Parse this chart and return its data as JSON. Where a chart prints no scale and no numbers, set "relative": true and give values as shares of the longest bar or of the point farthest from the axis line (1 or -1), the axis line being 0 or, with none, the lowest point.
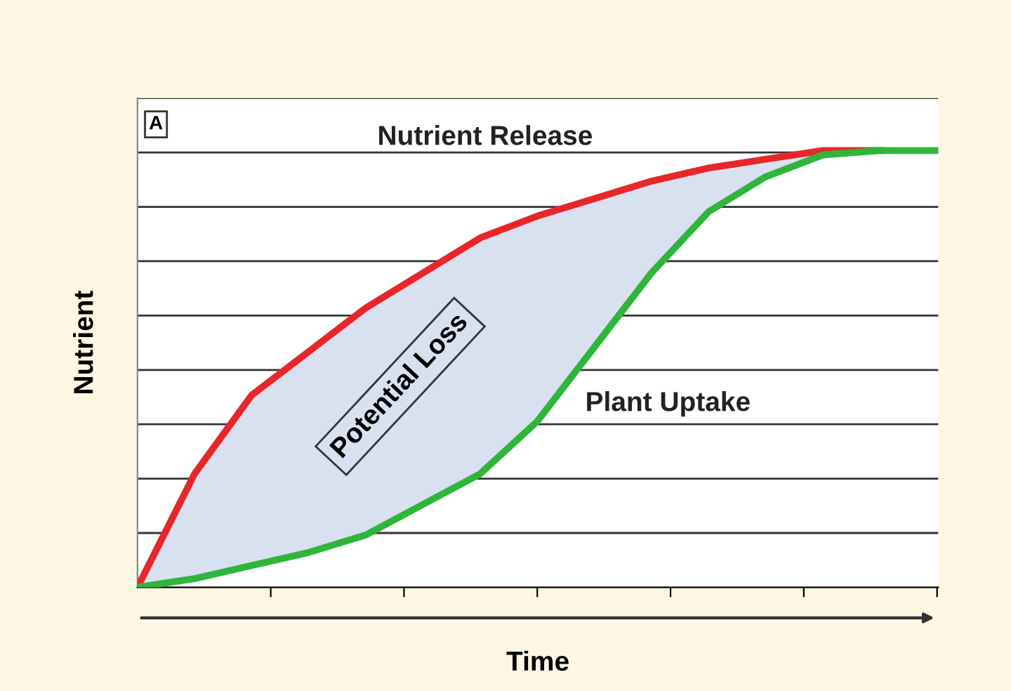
{
  "chart_data": {
    "type": "line",
    "relative": true,
    "xlabel": "Time",
    "ylabel": "Nutrient",
    "grid": "y",
    "legend": false,
    "marker": "none",
    "line_style": "solid",
    "categories": [
      null,
      null,
      null,
      null,
      null,
      null,
      null,
      null,
      null,
      null,
      null,
      null,
      null,
      null,
      null
    ],
    "series": [
      {
        "name": "Nutrient Release",
        "color": "#e8262a",
        "values": [
          0,
          0.26,
          0.44,
          0.54,
          0.64,
          0.72,
          0.8,
          0.85,
          0.89,
          0.93,
          0.96,
          0.98,
          1.0,
          1.0,
          null
        ]
      },
      {
        "name": "Plant Uptake",
        "color": "#2fb53a",
        "values": [
          0,
          0.02,
          0.05,
          0.08,
          0.12,
          0.19,
          0.26,
          0.38,
          0.55,
          0.72,
          0.86,
          0.94,
          0.99,
          1.0,
          1.0
        ],
        "lower": [
          0,
          0.02,
          0.05,
          0.08,
          0.12,
          0.19,
          0.26,
          0.38,
          0.55,
          0.72,
          0.86,
          0.94,
          0.99,
          1.0,
          1.0
        ],
        "upper": [
          0,
          0.26,
          0.44,
          0.54,
          0.64,
          0.72,
          0.8,
          0.85,
          0.89,
          0.93,
          0.96,
          0.98,
          1.0,
          1.0,
          1.0
        ]
      }
    ],
    "annotations": [
      "A",
      "Potential Loss"
    ]
  }
}
